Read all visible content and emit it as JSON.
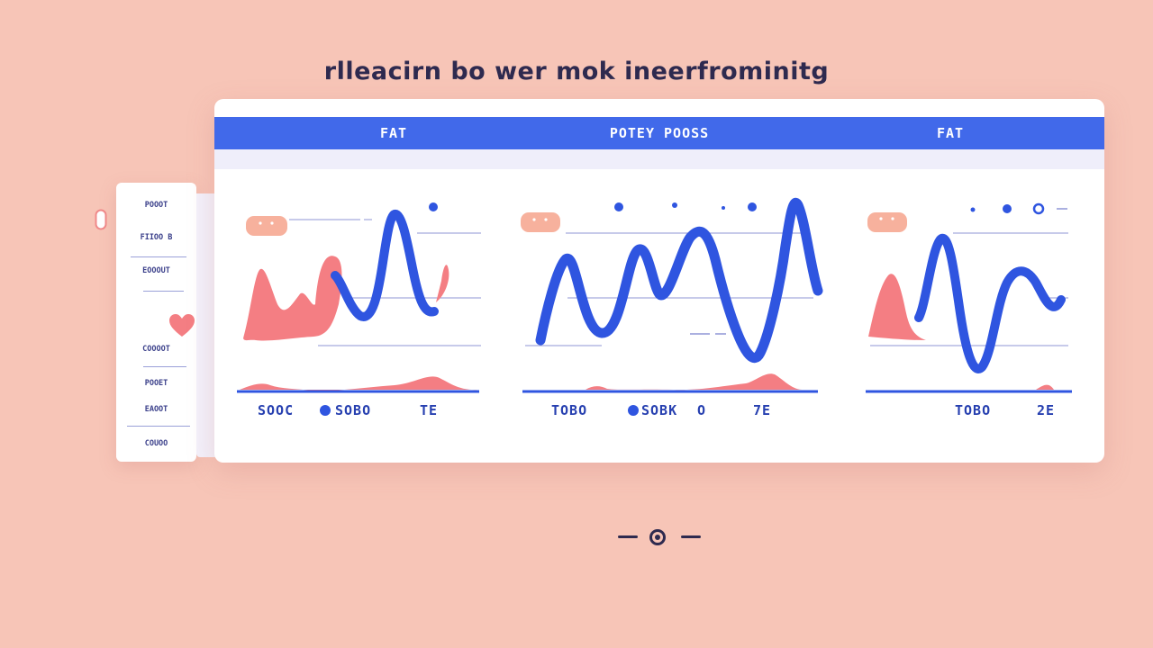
{
  "page": {
    "title": "rlleacirn  bo wer mok ineerfrominitg"
  },
  "header": {
    "labels": [
      "FAT",
      "POTEY POOSS",
      "FAT"
    ]
  },
  "sidebar": {
    "items": [
      "POOOT",
      "FIIOO B",
      "EOOOUT",
      "COOOOT",
      "POOET",
      "EAOOT",
      "COUOO"
    ]
  },
  "panels": [
    {
      "footer": {
        "a": "SOOC",
        "b": "SOBO",
        "c": "TE"
      }
    },
    {
      "footer": {
        "a": "TOBO",
        "b": "SOBK",
        "c": "O",
        "d": "7E"
      }
    },
    {
      "footer": {
        "a": "TOBO",
        "b": "2E"
      }
    }
  ],
  "colors": {
    "background": "#f7c5b7",
    "accent_blue": "#4169ea",
    "line_blue": "#2f55e0",
    "coral": "#f47e83"
  },
  "icons": {
    "heart": "heart-icon",
    "clip": "clip-icon",
    "pager": "pager-dot-icon"
  }
}
